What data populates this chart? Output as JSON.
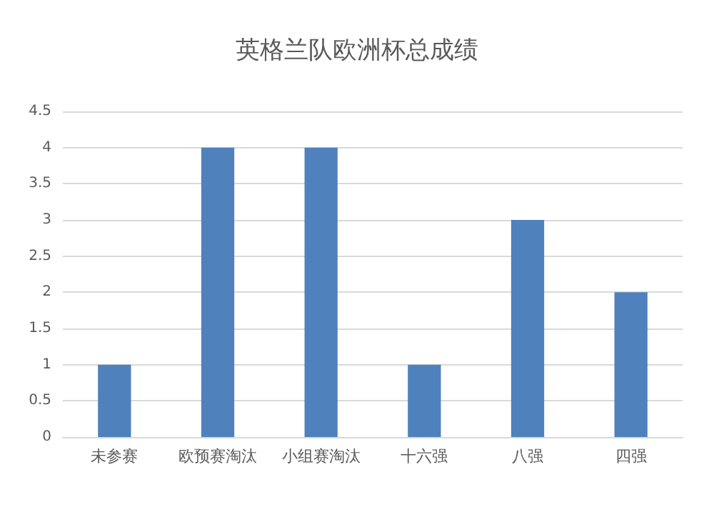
{
  "chart_data": {
    "type": "bar",
    "title": "英格兰队欧洲杯总成绩",
    "categories": [
      "未参赛",
      "欧预赛淘汰",
      "小组赛淘汰",
      "十六强",
      "八强",
      "四强"
    ],
    "values": [
      1,
      4,
      4,
      1,
      3,
      2
    ],
    "color": "#4f81bd",
    "ylim": [
      0,
      4.5
    ],
    "yticks": [
      0,
      0.5,
      1,
      1.5,
      2,
      2.5,
      3,
      3.5,
      4,
      4.5
    ],
    "grid": "y"
  }
}
